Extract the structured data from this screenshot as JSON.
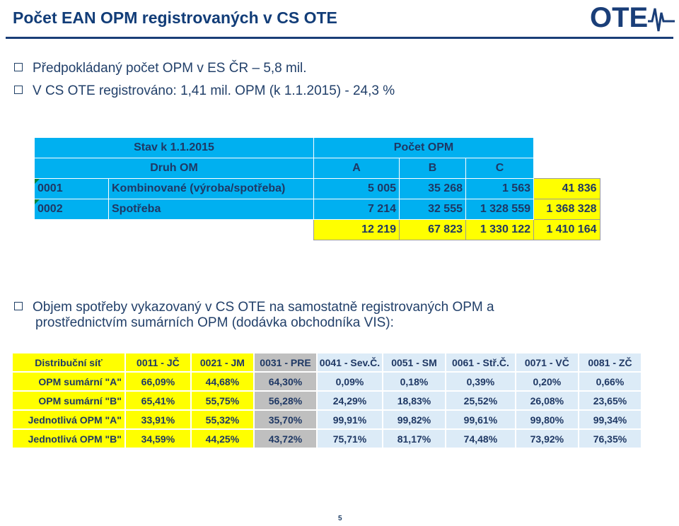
{
  "title": "Počet EAN OPM registrovaných v CS OTE",
  "logo": {
    "text": "OTE"
  },
  "bullets_top": [
    "Předpokládaný počet OPM v ES ČR – 5,8 mil.",
    "V CS OTE registrováno: 1,41 mil. OPM (k 1.1.2015) - 24,3 %"
  ],
  "table1": {
    "stav": "Stav k 1.1.2015",
    "pocet": "Počet OPM",
    "druh": "Druh OM",
    "cols": [
      "A",
      "B",
      "C"
    ],
    "rows": [
      {
        "code": "0001",
        "name": "Kombinované (výroba/spotřeba)",
        "a": "5 005",
        "b": "35 268",
        "c": "1 563",
        "total": "41 836"
      },
      {
        "code": "0002",
        "name": "Spotřeba",
        "a": "7 214",
        "b": "32 555",
        "c": "1 328 559",
        "total": "1 368 328"
      }
    ],
    "sum": {
      "a": "12 219",
      "b": "67 823",
      "c": "1 330 122",
      "total": "1 410 164"
    }
  },
  "bullet_bottom": [
    "Objem spotřeby vykazovaný v CS OTE na samostatně registrovaných OPM a",
    "prostřednictvím sumárních OPM (dodávka obchodníka VIS):"
  ],
  "table2": {
    "header": [
      "Distribuční síť",
      "0011 - JČ",
      "0021 - JM",
      "0031 - PRE",
      "0041 - Sev.Č.",
      "0051 - SM",
      "0061 - Stř.Č.",
      "0071 - VČ",
      "0081 - ZČ"
    ],
    "rows": [
      {
        "label": "OPM sumární \"A\"",
        "values": [
          "66,09%",
          "44,68%",
          "64,30%",
          "0,09%",
          "0,18%",
          "0,39%",
          "0,20%",
          "0,66%"
        ]
      },
      {
        "label": "OPM sumární \"B\"",
        "values": [
          "65,41%",
          "55,75%",
          "56,28%",
          "24,29%",
          "18,83%",
          "25,52%",
          "26,08%",
          "23,65%"
        ]
      },
      {
        "label": "Jednotlivá OPM \"A\"",
        "values": [
          "33,91%",
          "55,32%",
          "35,70%",
          "99,91%",
          "99,82%",
          "99,61%",
          "99,80%",
          "99,34%"
        ]
      },
      {
        "label": "Jednotlivá OPM \"B\"",
        "values": [
          "34,59%",
          "44,25%",
          "43,72%",
          "75,71%",
          "81,17%",
          "74,48%",
          "73,92%",
          "76,35%"
        ]
      }
    ]
  },
  "page_number": "5"
}
